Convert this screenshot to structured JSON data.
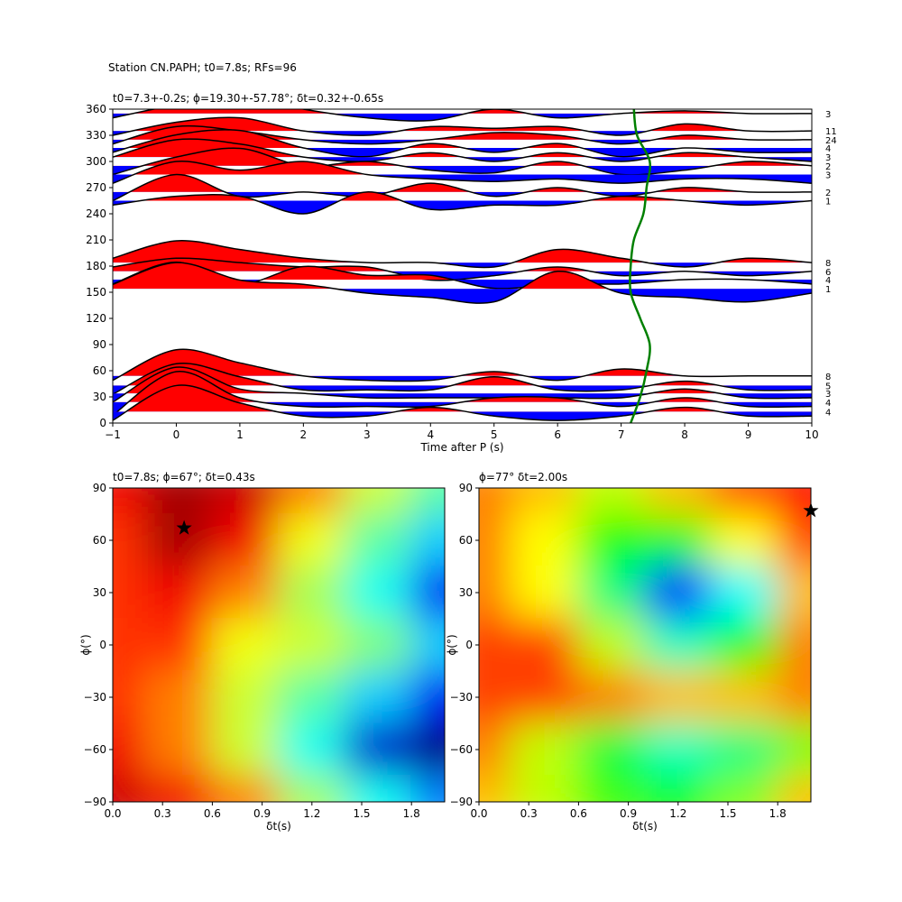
{
  "chart_data": [
    {
      "type": "wiggle",
      "suptitle": "Station CN.PAPH; t0=7.8s; RFs=96",
      "title": "t0=7.3+-0.2s; ϕ=19.30+-57.78°; δt=0.32+-0.65s",
      "xlabel": "Time after P (s)",
      "xlim": [
        -1,
        10
      ],
      "xticks": [
        {
          "value": -1,
          "label": "−1"
        },
        0,
        1,
        2,
        3,
        4,
        5,
        6,
        7,
        8,
        9,
        10
      ],
      "ylim": [
        0,
        360
      ],
      "yticks": [
        0,
        30,
        60,
        90,
        120,
        150,
        180,
        210,
        240,
        270,
        300,
        330,
        360
      ],
      "time": [
        -1,
        0,
        1,
        2,
        3,
        4,
        5,
        6,
        7,
        8,
        9,
        10
      ],
      "positive_color": "#ff0000",
      "negative_color": "#0000ff",
      "traces": [
        {
          "baz": 355,
          "count": 3,
          "values": [
            -5,
            10,
            20,
            5,
            -5,
            -8,
            5,
            -5,
            0,
            3,
            0,
            0
          ]
        },
        {
          "baz": 335,
          "count": 11,
          "values": [
            -5,
            10,
            15,
            0,
            -5,
            5,
            3,
            5,
            -5,
            8,
            0,
            0
          ]
        },
        {
          "baz": 325,
          "count": 24,
          "values": [
            -5,
            15,
            10,
            0,
            -5,
            0,
            8,
            5,
            -5,
            5,
            0,
            0
          ]
        },
        {
          "baz": 315.5,
          "count": 4,
          "values": [
            -5,
            15,
            20,
            0,
            -10,
            5,
            -5,
            5,
            -10,
            0,
            -5,
            -5
          ]
        },
        {
          "baz": 305,
          "count": 3,
          "values": [
            0,
            20,
            15,
            0,
            -5,
            5,
            -5,
            5,
            -5,
            5,
            0,
            -5
          ]
        },
        {
          "baz": 295,
          "count": 2,
          "values": [
            -10,
            10,
            20,
            0,
            5,
            -5,
            -8,
            5,
            -10,
            -5,
            5,
            0
          ]
        },
        {
          "baz": 285,
          "count": 3,
          "values": [
            -10,
            15,
            5,
            15,
            0,
            -5,
            -8,
            -5,
            -10,
            -5,
            -5,
            -10
          ]
        },
        {
          "baz": 265,
          "count": 2,
          "values": [
            -10,
            20,
            -5,
            0,
            -5,
            10,
            -5,
            5,
            -5,
            5,
            0,
            0
          ]
        },
        {
          "baz": 255,
          "count": 1,
          "values": [
            -5,
            5,
            5,
            -15,
            10,
            -10,
            -5,
            -5,
            5,
            0,
            -5,
            0
          ]
        },
        {
          "baz": 184,
          "count": 8,
          "values": [
            5,
            25,
            15,
            5,
            0,
            0,
            -5,
            15,
            5,
            -5,
            5,
            0
          ]
        },
        {
          "baz": 174,
          "count": 6,
          "values": [
            5,
            15,
            10,
            5,
            5,
            -10,
            -5,
            5,
            -5,
            0,
            -5,
            0
          ]
        },
        {
          "baz": 164.5,
          "count": 4,
          "values": [
            -5,
            20,
            -5,
            15,
            5,
            5,
            -10,
            -5,
            -5,
            0,
            0,
            -5
          ]
        },
        {
          "baz": 154,
          "count": 1,
          "values": [
            5,
            30,
            10,
            5,
            -5,
            -10,
            -15,
            20,
            -5,
            -10,
            -15,
            -5
          ]
        },
        {
          "baz": 54,
          "count": 8,
          "values": [
            -5,
            30,
            15,
            0,
            -5,
            -5,
            5,
            -5,
            8,
            0,
            0,
            0
          ]
        },
        {
          "baz": 43,
          "count": 5,
          "values": [
            -10,
            25,
            10,
            -5,
            -5,
            -5,
            10,
            -5,
            -5,
            5,
            -5,
            -5
          ]
        },
        {
          "baz": 34,
          "count": 3,
          "values": [
            -10,
            30,
            5,
            0,
            -5,
            -5,
            -5,
            -5,
            -5,
            5,
            -5,
            -5
          ]
        },
        {
          "baz": 24,
          "count": 4,
          "values": [
            -15,
            35,
            5,
            -5,
            -5,
            -5,
            5,
            5,
            -5,
            5,
            -5,
            -5
          ]
        },
        {
          "baz": 13,
          "count": 4,
          "values": [
            -10,
            30,
            10,
            -5,
            -5,
            5,
            -5,
            -10,
            -5,
            5,
            -5,
            -5
          ]
        }
      ],
      "t0_curve": {
        "color": "#008000",
        "x": [
          7.15,
          7.3,
          7.4,
          7.45,
          7.3,
          7.15,
          7.15,
          7.2,
          7.35,
          7.4,
          7.45,
          7.25,
          7.2
        ],
        "baz": [
          0,
          30,
          60,
          90,
          120,
          150,
          180,
          210,
          240,
          270,
          300,
          330,
          360
        ]
      }
    },
    {
      "type": "heatmap",
      "title": "t0=7.8s; ϕ=67°; δt=0.43s",
      "xlabel": "δt(s)",
      "ylabel": "ϕ(°)",
      "xlim": [
        0,
        2.0
      ],
      "xticks": [
        {
          "value": 0,
          "label": "0.0"
        },
        0.3,
        0.6,
        0.9,
        1.2,
        1.5,
        1.8
      ],
      "ylim": [
        -90,
        90
      ],
      "yticks": [
        {
          "value": -90,
          "label": "−90"
        },
        {
          "value": -60,
          "label": "−60"
        },
        {
          "value": -30,
          "label": "−30"
        },
        0,
        30,
        60,
        90
      ],
      "colormap": [
        "#00007f",
        "#0000ff",
        "#00ffff",
        "#7fff7f",
        "#ffff00",
        "#ff0000",
        "#7f0000"
      ],
      "x": [
        0,
        0.4,
        0.8,
        1.2,
        1.6,
        2.0
      ],
      "y": [
        90,
        60,
        30,
        0,
        -30,
        -60,
        -90
      ],
      "z": [
        [
          0.85,
          0.95,
          0.9,
          0.75,
          0.6,
          0.45
        ],
        [
          0.8,
          0.95,
          0.85,
          0.65,
          0.45,
          0.3
        ],
        [
          0.8,
          0.85,
          0.75,
          0.55,
          0.35,
          0.15
        ],
        [
          0.8,
          0.8,
          0.65,
          0.6,
          0.5,
          0.3
        ],
        [
          0.8,
          0.75,
          0.6,
          0.45,
          0.3,
          0.15
        ],
        [
          0.85,
          0.75,
          0.6,
          0.35,
          0.1,
          0.0
        ],
        [
          0.9,
          0.85,
          0.75,
          0.55,
          0.35,
          0.25
        ]
      ],
      "star": {
        "x": 0.43,
        "y": 67
      }
    },
    {
      "type": "heatmap",
      "title": "ϕ=77° δt=2.00s",
      "xlabel": "δt(s)",
      "ylabel": "ϕ(°)",
      "xlim": [
        0,
        2.0
      ],
      "xticks": [
        {
          "value": 0,
          "label": "0.0"
        },
        0.3,
        0.6,
        0.9,
        1.2,
        1.5,
        1.8
      ],
      "ylim": [
        -90,
        90
      ],
      "yticks": [
        {
          "value": -90,
          "label": "−90"
        },
        {
          "value": -60,
          "label": "−60"
        },
        {
          "value": -30,
          "label": "−30"
        },
        0,
        30,
        60,
        90
      ],
      "colormap": [
        "#ff00ff",
        "#0000ff",
        "#00ffff",
        "#00ff00",
        "#ffff00",
        "#ff0000"
      ],
      "x": [
        0,
        0.4,
        0.8,
        1.2,
        1.6,
        2.0
      ],
      "y": [
        90,
        60,
        30,
        0,
        -30,
        -60,
        -90
      ],
      "z": [
        [
          0.9,
          0.85,
          0.75,
          0.85,
          0.95,
          1.0
        ],
        [
          0.9,
          0.8,
          0.6,
          0.6,
          0.8,
          0.95
        ],
        [
          0.9,
          0.8,
          0.5,
          0.2,
          0.4,
          0.85
        ],
        [
          0.95,
          0.95,
          0.75,
          0.45,
          0.6,
          0.9
        ],
        [
          0.95,
          0.95,
          0.9,
          0.85,
          0.85,
          0.9
        ],
        [
          0.9,
          0.75,
          0.55,
          0.45,
          0.5,
          0.7
        ],
        [
          0.85,
          0.75,
          0.65,
          0.6,
          0.7,
          0.85
        ]
      ],
      "star": {
        "x": 2.0,
        "y": 77
      }
    }
  ]
}
